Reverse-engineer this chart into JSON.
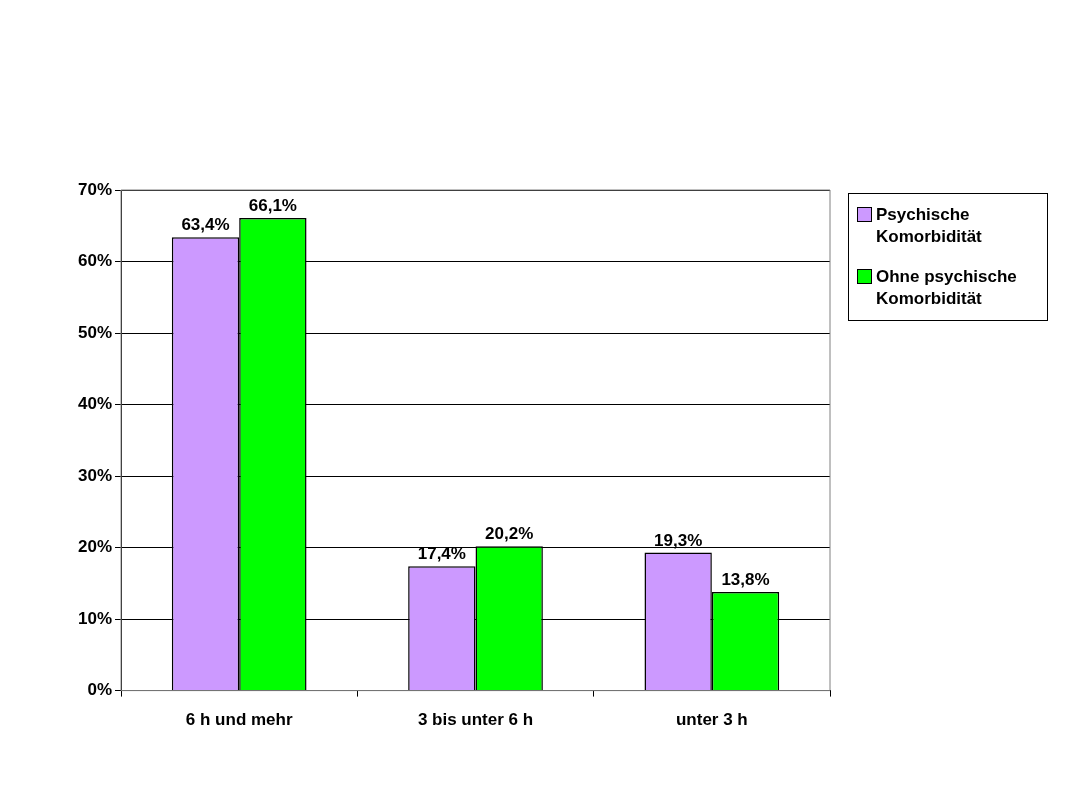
{
  "chart_data": {
    "type": "bar",
    "categories": [
      "6 h und mehr",
      "3 bis unter 6 h",
      "unter 3 h"
    ],
    "series": [
      {
        "name": "Psychische Komorbidität",
        "color": "#cc99ff",
        "values": [
          63.4,
          17.4,
          19.3
        ],
        "value_labels": [
          "63,4%",
          "17,4%",
          "19,3%"
        ]
      },
      {
        "name": "Ohne psychische Komorbidität",
        "color": "#00ff00",
        "values": [
          66.1,
          20.2,
          13.8
        ],
        "value_labels": [
          "66,1%",
          "20,2%",
          "13,8%"
        ]
      }
    ],
    "ylim": [
      0,
      70
    ],
    "yticks": [
      {
        "value": 0,
        "label": "0%"
      },
      {
        "value": 10,
        "label": "10%"
      },
      {
        "value": 20,
        "label": "20%"
      },
      {
        "value": 30,
        "label": "30%"
      },
      {
        "value": 40,
        "label": "40%"
      },
      {
        "value": 50,
        "label": "50%"
      },
      {
        "value": 60,
        "label": "60%"
      },
      {
        "value": 70,
        "label": "70%"
      }
    ],
    "grid": "y",
    "legend": "right"
  }
}
